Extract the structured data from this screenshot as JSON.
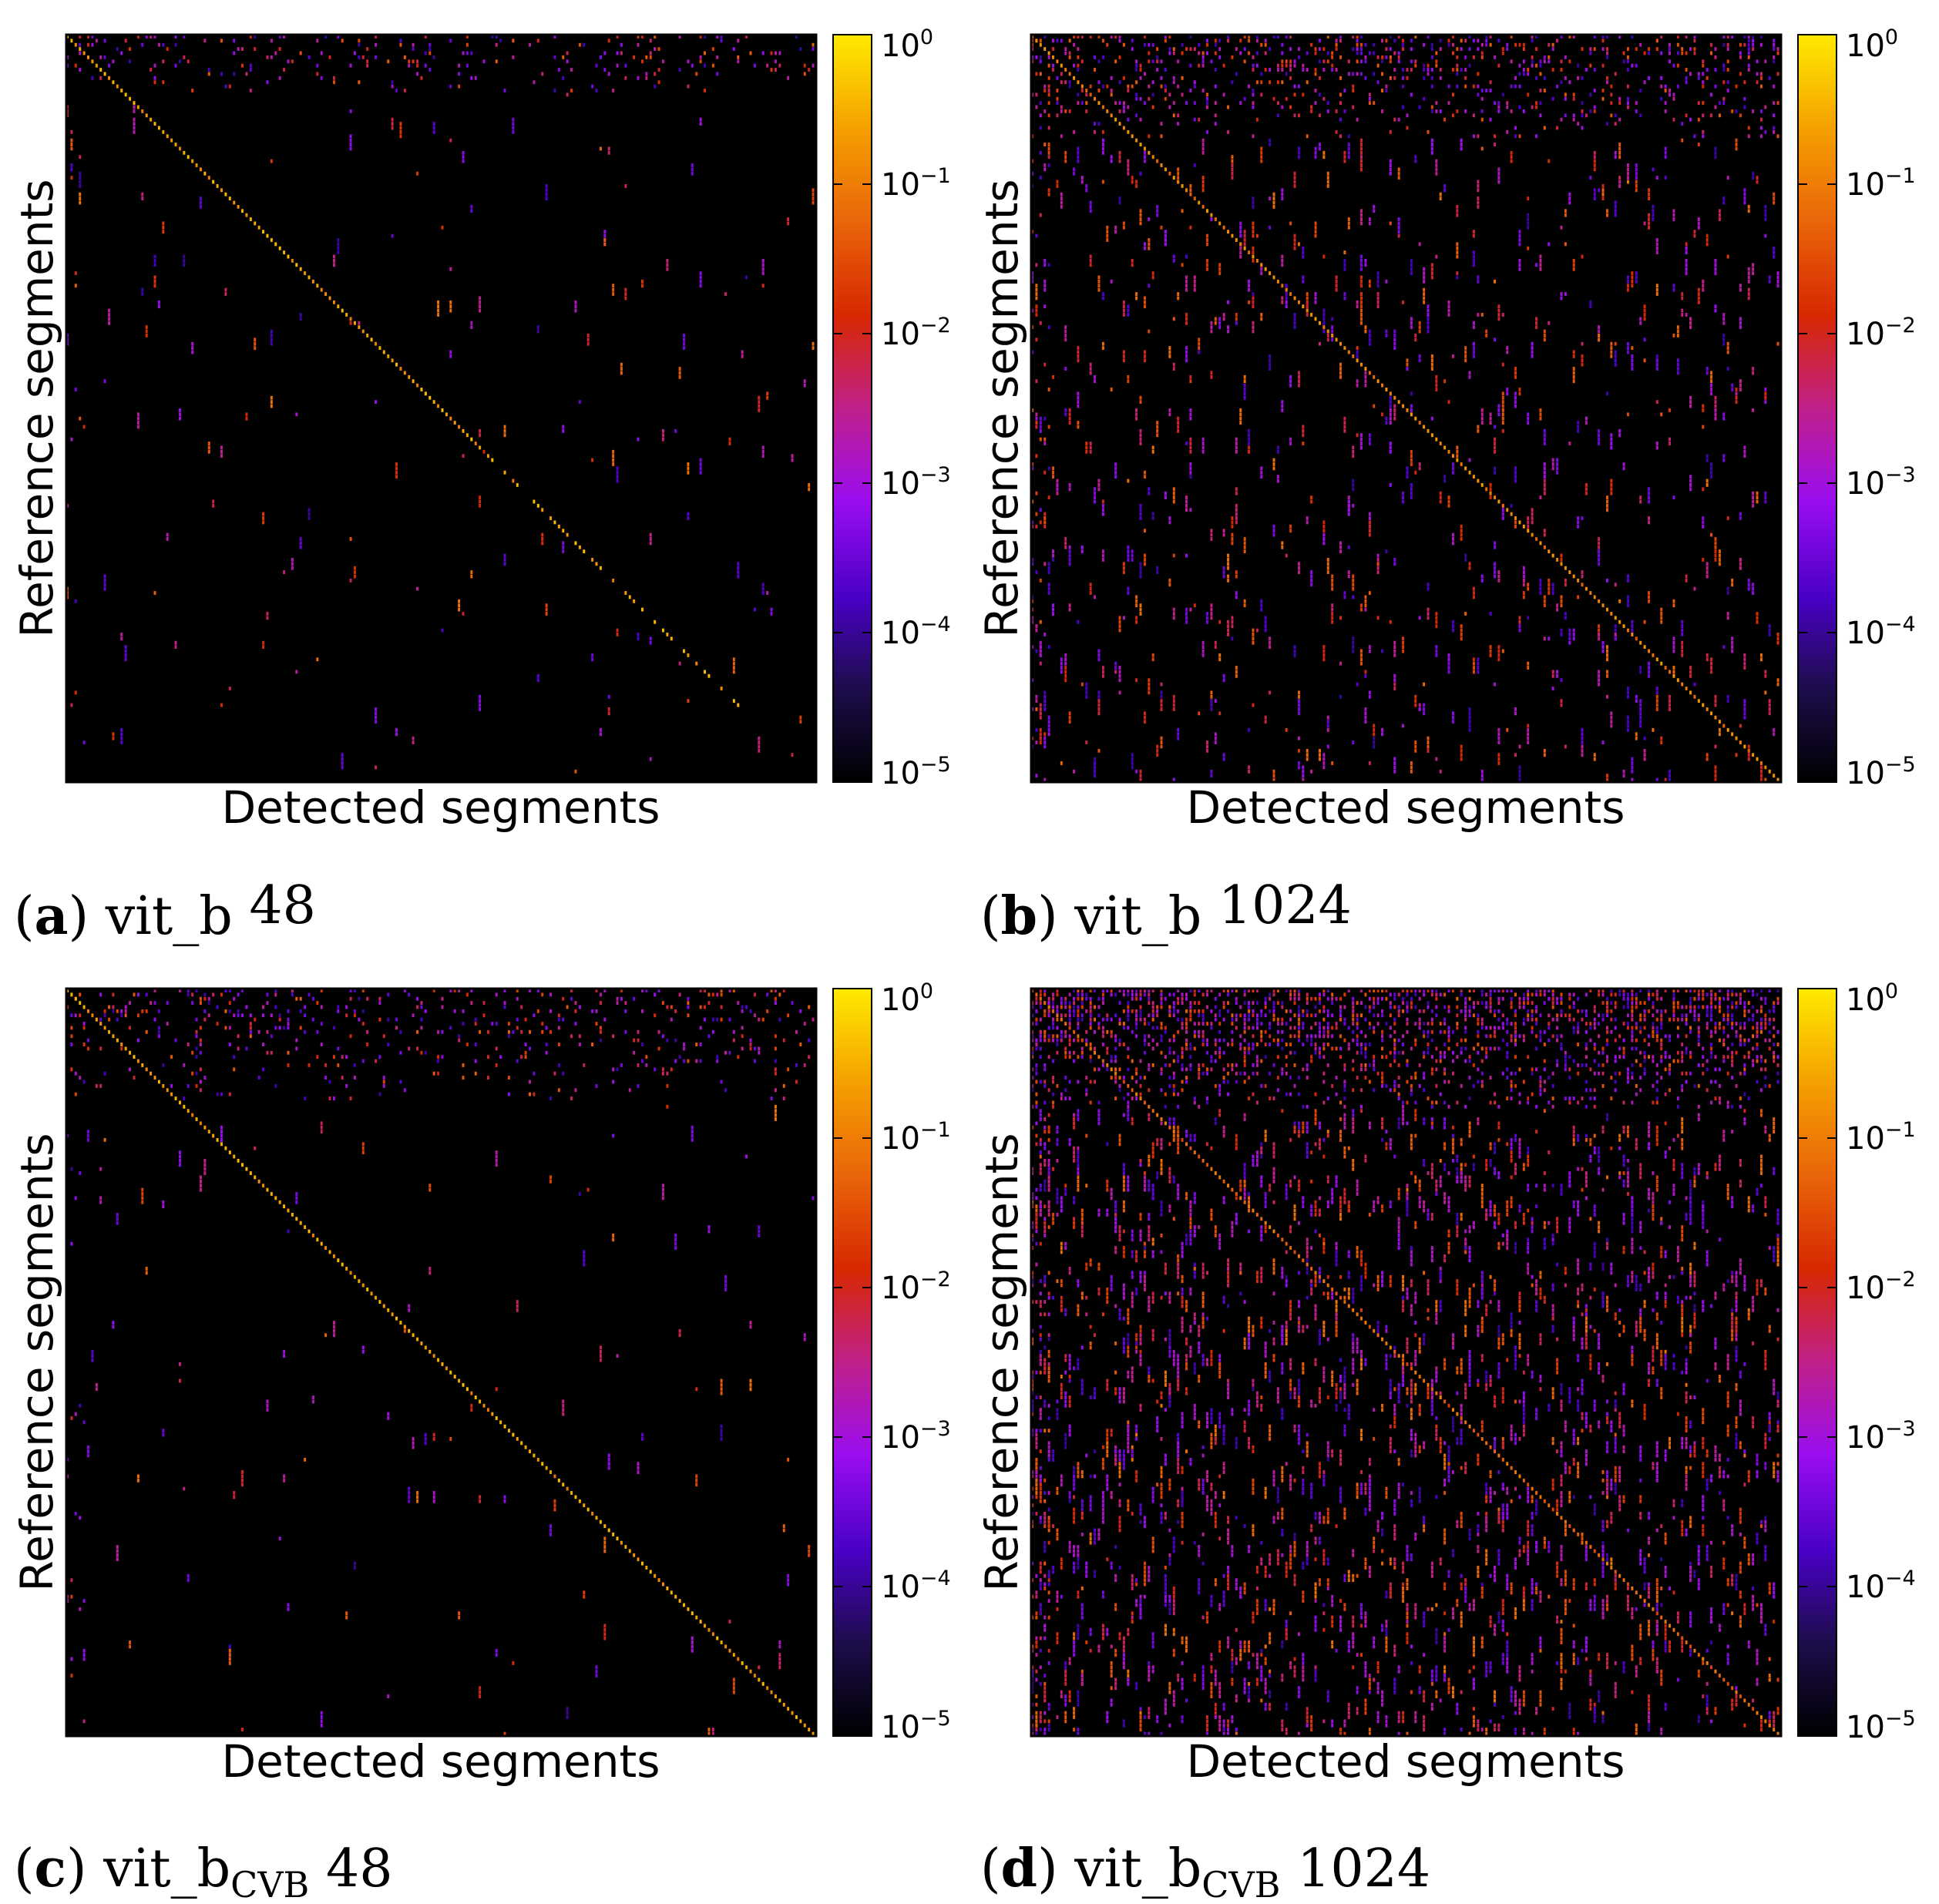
{
  "figure": {
    "panels": [
      {
        "letter": "a",
        "label": "vit_b",
        "subscript": "",
        "size": "48"
      },
      {
        "letter": "b",
        "label": "vit_b",
        "subscript": "",
        "size": "1024"
      },
      {
        "letter": "c",
        "label": "vit_b",
        "subscript": "CVB",
        "size": "48"
      },
      {
        "letter": "d",
        "label": "vit_b",
        "subscript": "CVB",
        "size": "1024"
      }
    ]
  },
  "colors": {
    "background": "#000000",
    "colormap_stops": [
      "#000000",
      "#1d0d4b",
      "#4a00c8",
      "#9a0df0",
      "#c0208a",
      "#d72800",
      "#e9650a",
      "#f5a000",
      "#ffea00"
    ]
  },
  "chart_data": [
    {
      "type": "heatmap",
      "title": "(a) vit_b 48",
      "xlabel": "Detected segments",
      "ylabel": "Reference segments",
      "color_scale": "log",
      "clim": [
        1e-05,
        1
      ],
      "colorbar_ticks": [
        {
          "base": "10",
          "exp": "0"
        },
        {
          "base": "10",
          "exp": "−1"
        },
        {
          "base": "10",
          "exp": "−2"
        },
        {
          "base": "10",
          "exp": "−3"
        },
        {
          "base": "10",
          "exp": "−4"
        },
        {
          "base": "10",
          "exp": "−5"
        }
      ],
      "matrix_size": 180,
      "diagonal": {
        "value": 0.2,
        "end_fraction": 0.9,
        "dense_until": 0.55
      },
      "off_diagonal_density": 0.005,
      "top_band": {
        "rows": 0.08,
        "density": 0.15,
        "value_range": [
          0.0001,
          0.05
        ]
      },
      "left_band": {
        "cols": 0.03,
        "density": 0.02
      },
      "seed": 11
    },
    {
      "type": "heatmap",
      "title": "(b) vit_b 1024",
      "xlabel": "Detected segments",
      "ylabel": "Reference segments",
      "color_scale": "log",
      "clim": [
        1e-05,
        1
      ],
      "colorbar_ticks": [
        {
          "base": "10",
          "exp": "0"
        },
        {
          "base": "10",
          "exp": "−1"
        },
        {
          "base": "10",
          "exp": "−2"
        },
        {
          "base": "10",
          "exp": "−3"
        },
        {
          "base": "10",
          "exp": "−4"
        },
        {
          "base": "10",
          "exp": "−5"
        }
      ],
      "matrix_size": 180,
      "diagonal": {
        "value": 0.1,
        "end_fraction": 1.0,
        "dense_until": 1.0
      },
      "off_diagonal_density": 0.035,
      "top_band": {
        "rows": 0.14,
        "density": 0.28,
        "value_range": [
          0.0001,
          0.05
        ]
      },
      "left_band": {
        "cols": 0.03,
        "density": 0.1
      },
      "seed": 22
    },
    {
      "type": "heatmap",
      "title": "(c) vit_bCVB 48",
      "xlabel": "Detected segments",
      "ylabel": "Reference segments",
      "color_scale": "log",
      "clim": [
        1e-05,
        1
      ],
      "colorbar_ticks": [
        {
          "base": "10",
          "exp": "0"
        },
        {
          "base": "10",
          "exp": "−1"
        },
        {
          "base": "10",
          "exp": "−2"
        },
        {
          "base": "10",
          "exp": "−3"
        },
        {
          "base": "10",
          "exp": "−4"
        },
        {
          "base": "10",
          "exp": "−5"
        }
      ],
      "matrix_size": 180,
      "diagonal": {
        "value": 0.2,
        "end_fraction": 1.0,
        "dense_until": 1.0
      },
      "off_diagonal_density": 0.005,
      "top_band": {
        "rows": 0.15,
        "density": 0.18,
        "value_range": [
          0.0001,
          0.05
        ]
      },
      "left_band": {
        "cols": 0.03,
        "density": 0.02
      },
      "seed": 33
    },
    {
      "type": "heatmap",
      "title": "(d) vit_bCVB 1024",
      "xlabel": "Detected segments",
      "ylabel": "Reference segments",
      "color_scale": "log",
      "clim": [
        1e-05,
        1
      ],
      "colorbar_ticks": [
        {
          "base": "10",
          "exp": "0"
        },
        {
          "base": "10",
          "exp": "−1"
        },
        {
          "base": "10",
          "exp": "−2"
        },
        {
          "base": "10",
          "exp": "−3"
        },
        {
          "base": "10",
          "exp": "−4"
        },
        {
          "base": "10",
          "exp": "−5"
        }
      ],
      "matrix_size": 180,
      "diagonal": {
        "value": 0.05,
        "end_fraction": 1.0,
        "dense_until": 1.0
      },
      "off_diagonal_density": 0.08,
      "top_band": {
        "rows": 0.16,
        "density": 0.55,
        "value_range": [
          0.0001,
          0.05
        ]
      },
      "left_band": {
        "cols": 0.03,
        "density": 0.25
      },
      "seed": 44
    }
  ]
}
